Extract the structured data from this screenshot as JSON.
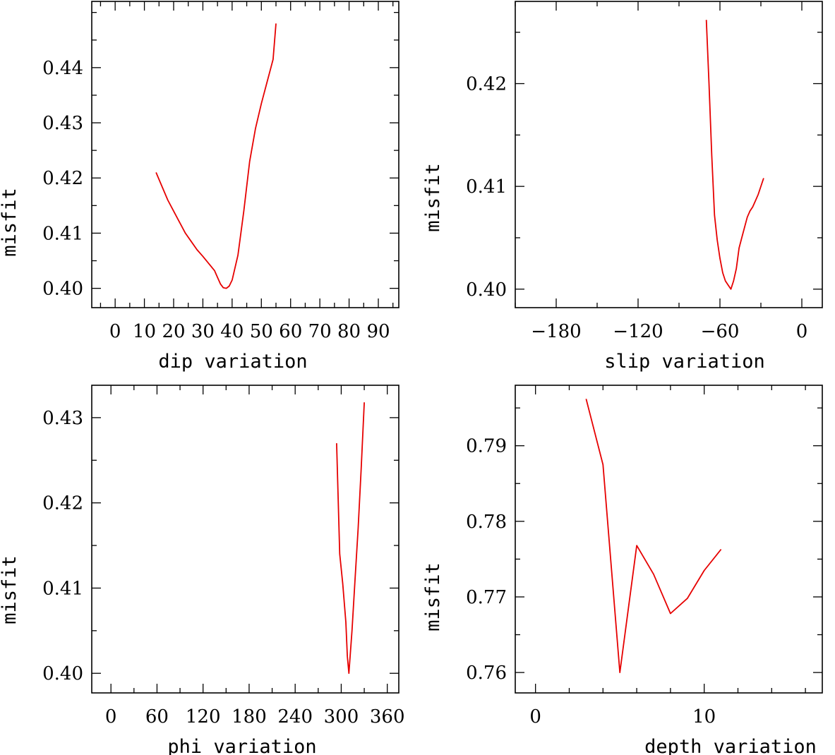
{
  "chart_data": [
    {
      "type": "line",
      "xlabel": "dip    variation",
      "ylabel": "misfit",
      "xlim": [
        -8,
        97
      ],
      "ylim": [
        0.3965,
        0.452
      ],
      "xticks": [
        0,
        10,
        20,
        30,
        40,
        50,
        60,
        70,
        80,
        90
      ],
      "xtick_labels": [
        "0",
        "10",
        "20",
        "30",
        "40",
        "50",
        "60",
        "70",
        "80",
        "90"
      ],
      "yticks": [
        0.4,
        0.41,
        0.42,
        0.43,
        0.44
      ],
      "ytick_labels": [
        "0.40",
        "0.41",
        "0.42",
        "0.43",
        "0.44"
      ],
      "series": [
        {
          "x": [
            14,
            16,
            18,
            20,
            22,
            24,
            26,
            28,
            30,
            32,
            34,
            35,
            36,
            37,
            38,
            39,
            40,
            42,
            44,
            46,
            48,
            50,
            52,
            54,
            55
          ],
          "y": [
            0.421,
            0.4185,
            0.416,
            0.414,
            0.412,
            0.41,
            0.4085,
            0.407,
            0.4058,
            0.4045,
            0.4032,
            0.402,
            0.4008,
            0.4001,
            0.4,
            0.4004,
            0.4015,
            0.406,
            0.414,
            0.423,
            0.429,
            0.4335,
            0.4375,
            0.4415,
            0.448
          ]
        }
      ],
      "color": "#e60000"
    },
    {
      "type": "line",
      "xlabel": "slip   variation",
      "ylabel": "misfit",
      "xlim": [
        -210,
        15
      ],
      "ylim": [
        0.3982,
        0.428
      ],
      "xticks": [
        -180,
        -120,
        -60,
        0
      ],
      "xtick_labels": [
        "−180",
        "−120",
        "−60",
        "0"
      ],
      "yticks": [
        0.4,
        0.41,
        0.42
      ],
      "ytick_labels": [
        "0.40",
        "0.41",
        "0.42"
      ],
      "series": [
        {
          "x": [
            -70,
            -68,
            -66,
            -64,
            -62,
            -60,
            -58,
            -56,
            -54,
            -52,
            -50,
            -48,
            -46,
            -44,
            -42,
            -40,
            -38,
            -36,
            -34,
            -32,
            -30,
            -28
          ],
          "y": [
            0.4262,
            0.42,
            0.413,
            0.4072,
            0.4048,
            0.403,
            0.4016,
            0.4008,
            0.4004,
            0.4,
            0.4008,
            0.402,
            0.404,
            0.405,
            0.406,
            0.407,
            0.4076,
            0.408,
            0.4086,
            0.4092,
            0.41,
            0.4108
          ]
        }
      ],
      "color": "#e60000"
    },
    {
      "type": "line",
      "xlabel": "phi    variation",
      "ylabel": "misfit",
      "xlim": [
        -25,
        375
      ],
      "ylim": [
        0.3977,
        0.4338
      ],
      "xticks": [
        0,
        60,
        120,
        180,
        240,
        300,
        360
      ],
      "xtick_labels": [
        "0",
        "60",
        "120",
        "180",
        "240",
        "300",
        "360"
      ],
      "yticks": [
        0.4,
        0.41,
        0.42,
        0.43
      ],
      "ytick_labels": [
        "0.40",
        "0.41",
        "0.42",
        "0.43"
      ],
      "series": [
        {
          "x": [
            294,
            298,
            302,
            306,
            308,
            310,
            314,
            318,
            322,
            326,
            330
          ],
          "y": [
            0.427,
            0.414,
            0.4105,
            0.406,
            0.402,
            0.4,
            0.405,
            0.411,
            0.417,
            0.424,
            0.4318
          ]
        }
      ],
      "color": "#e60000"
    },
    {
      "type": "line",
      "xlabel": "depth  variation",
      "ylabel": "misfit",
      "xlim": [
        -1.2,
        17
      ],
      "ylim": [
        0.7573,
        0.798
      ],
      "xticks": [
        0,
        10
      ],
      "xtick_labels": [
        "0",
        "10"
      ],
      "yticks": [
        0.76,
        0.77,
        0.78,
        0.79
      ],
      "ytick_labels": [
        "0.76",
        "0.77",
        "0.78",
        "0.79"
      ],
      "series": [
        {
          "x": [
            3,
            4,
            5,
            6,
            7,
            8,
            9,
            10,
            11
          ],
          "y": [
            0.7962,
            0.7875,
            0.76,
            0.7768,
            0.773,
            0.7678,
            0.7698,
            0.7735,
            0.7763
          ]
        }
      ],
      "color": "#e60000"
    }
  ]
}
